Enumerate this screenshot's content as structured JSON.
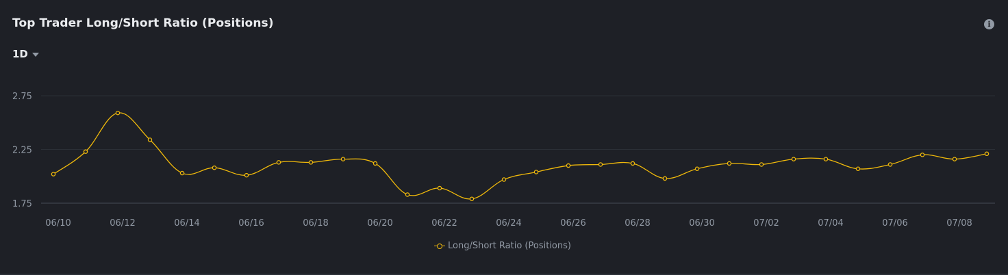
{
  "header": {
    "title": "Top Trader Long/Short Ratio (Positions)",
    "info_icon": "info-icon",
    "period": "1D"
  },
  "colors": {
    "background": "#1e2026",
    "line": "#f0b90b",
    "grid": "#2b2f36",
    "axis_text": "#929aa5"
  },
  "chart_data": {
    "type": "line",
    "x": [
      "06/10",
      "06/11",
      "06/12",
      "06/13",
      "06/14",
      "06/15",
      "06/16",
      "06/17",
      "06/18",
      "06/19",
      "06/20",
      "06/21",
      "06/22",
      "06/23",
      "06/24",
      "06/25",
      "06/26",
      "06/27",
      "06/28",
      "06/29",
      "06/30",
      "07/01",
      "07/02",
      "07/03",
      "07/04",
      "07/05",
      "07/06",
      "07/07",
      "07/08",
      "07/09"
    ],
    "x_tick_labels": [
      "06/10",
      "06/12",
      "06/14",
      "06/16",
      "06/18",
      "06/20",
      "06/22",
      "06/24",
      "06/26",
      "06/28",
      "06/30",
      "07/02",
      "07/04",
      "07/06",
      "07/08"
    ],
    "y_ticks": [
      1.75,
      2.25,
      2.75
    ],
    "ylim": [
      1.75,
      2.75
    ],
    "grid": true,
    "legend_position": "bottom-center",
    "series": [
      {
        "name": "Long/Short Ratio (Positions)",
        "values": [
          2.02,
          2.23,
          2.59,
          2.34,
          2.03,
          2.08,
          2.01,
          2.13,
          2.13,
          2.16,
          2.12,
          1.83,
          1.89,
          1.79,
          1.97,
          2.04,
          2.1,
          2.11,
          2.12,
          1.98,
          2.07,
          2.12,
          2.11,
          2.16,
          2.16,
          2.07,
          2.11,
          2.2,
          2.16,
          2.21
        ]
      }
    ]
  }
}
